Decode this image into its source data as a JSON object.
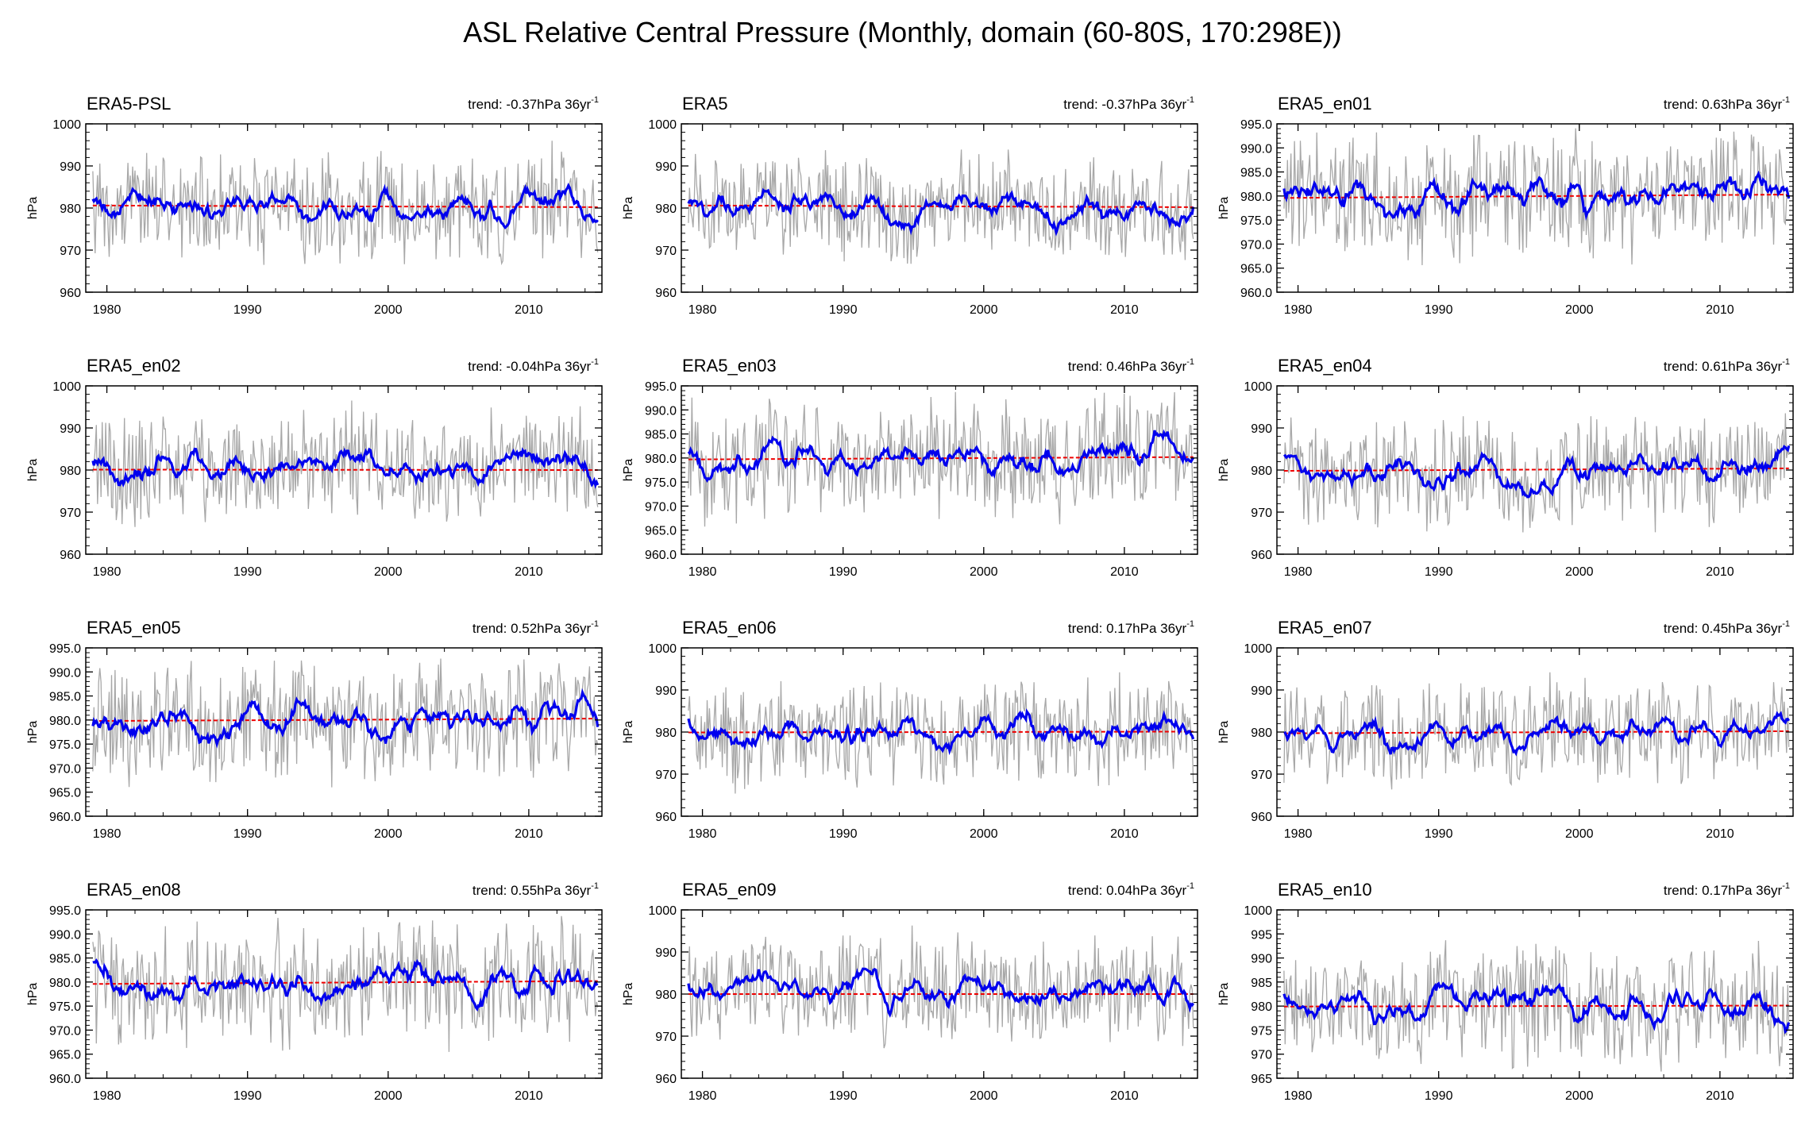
{
  "title": "ASL Relative Central Pressure (Monthly, domain (60-80S, 170:298E))",
  "colors": {
    "raw_series": "#a8a8a8",
    "smoothed_series": "#0000ee",
    "trend_line": "#ee0000"
  },
  "chart_data": [
    {
      "type": "line",
      "title": "ERA5-PSL",
      "trend_text": "trend: -0.37hPa 36yr",
      "trend_superscript": "-1",
      "ylabel": "hPa",
      "xlim": [
        1978.5,
        2015.2
      ],
      "ylim": [
        960,
        1000
      ],
      "yticks": [
        960,
        970,
        980,
        990,
        1000
      ],
      "ytick_labels": [
        "960",
        "970",
        "980",
        "990",
        "1000"
      ],
      "xticks": [
        1980,
        1990,
        2000,
        2010
      ],
      "xtick_labels": [
        "1980",
        "1990",
        "2000",
        "2010"
      ],
      "trend": {
        "start": 980.6,
        "end": 980.2
      },
      "series": [
        {
          "name": "",
          "style": "raw monthly, thin grey",
          "start": 1979.0,
          "step": 0.0833
        },
        {
          "name": "",
          "style": "smoothed, thick blue",
          "start": 1979.0,
          "step": 0.0833
        }
      ],
      "seed": 11
    },
    {
      "type": "line",
      "title": "ERA5",
      "trend_text": "trend: -0.37hPa 36yr",
      "trend_superscript": "-1",
      "ylabel": "hPa",
      "xlim": [
        1978.5,
        2015.2
      ],
      "ylim": [
        960,
        1000
      ],
      "yticks": [
        960,
        970,
        980,
        990,
        1000
      ],
      "ytick_labels": [
        "960",
        "970",
        "980",
        "990",
        "1000"
      ],
      "xticks": [
        1980,
        1990,
        2000,
        2010
      ],
      "xtick_labels": [
        "1980",
        "1990",
        "2000",
        "2010"
      ],
      "trend": {
        "start": 980.6,
        "end": 980.2
      },
      "series": [
        {
          "name": "",
          "style": "raw monthly, thin grey",
          "start": 1979.0,
          "step": 0.0833
        },
        {
          "name": "",
          "style": "smoothed, thick blue",
          "start": 1979.0,
          "step": 0.0833
        }
      ],
      "seed": 23
    },
    {
      "type": "line",
      "title": "ERA5_en01",
      "trend_text": "trend: 0.63hPa 36yr",
      "trend_superscript": "-1",
      "ylabel": "hPa",
      "xlim": [
        1978.5,
        2015.2
      ],
      "ylim": [
        960,
        995
      ],
      "yticks": [
        960,
        965,
        970,
        975,
        980,
        985,
        990,
        995
      ],
      "ytick_labels": [
        "960.0",
        "965.0",
        "970.0",
        "975.0",
        "980.0",
        "985.0",
        "990.0",
        "995.0"
      ],
      "xticks": [
        1980,
        1990,
        2000,
        2010
      ],
      "xtick_labels": [
        "1980",
        "1990",
        "2000",
        "2010"
      ],
      "trend": {
        "start": 979.6,
        "end": 980.3
      },
      "series": [
        {
          "name": "",
          "style": "raw monthly, thin grey",
          "start": 1979.0,
          "step": 0.0833
        },
        {
          "name": "",
          "style": "smoothed, thick blue",
          "start": 1979.0,
          "step": 0.0833
        }
      ],
      "seed": 37
    },
    {
      "type": "line",
      "title": "ERA5_en02",
      "trend_text": "trend: -0.04hPa 36yr",
      "trend_superscript": "-1",
      "ylabel": "hPa",
      "xlim": [
        1978.5,
        2015.2
      ],
      "ylim": [
        960,
        1000
      ],
      "yticks": [
        960,
        970,
        980,
        990,
        1000
      ],
      "ytick_labels": [
        "960",
        "970",
        "980",
        "990",
        "1000"
      ],
      "xticks": [
        1980,
        1990,
        2000,
        2010
      ],
      "xtick_labels": [
        "1980",
        "1990",
        "2000",
        "2010"
      ],
      "trend": {
        "start": 980.1,
        "end": 980.0
      },
      "series": [
        {
          "name": "",
          "style": "raw monthly, thin grey",
          "start": 1979.0,
          "step": 0.0833
        },
        {
          "name": "",
          "style": "smoothed, thick blue",
          "start": 1979.0,
          "step": 0.0833
        }
      ],
      "seed": 41
    },
    {
      "type": "line",
      "title": "ERA5_en03",
      "trend_text": "trend: 0.46hPa 36yr",
      "trend_superscript": "-1",
      "ylabel": "hPa",
      "xlim": [
        1978.5,
        2015.2
      ],
      "ylim": [
        960,
        995
      ],
      "yticks": [
        960,
        965,
        970,
        975,
        980,
        985,
        990,
        995
      ],
      "ytick_labels": [
        "960.0",
        "965.0",
        "970.0",
        "975.0",
        "980.0",
        "985.0",
        "990.0",
        "995.0"
      ],
      "xticks": [
        1980,
        1990,
        2000,
        2010
      ],
      "xtick_labels": [
        "1980",
        "1990",
        "2000",
        "2010"
      ],
      "trend": {
        "start": 979.7,
        "end": 980.2
      },
      "series": [
        {
          "name": "",
          "style": "raw monthly, thin grey",
          "start": 1979.0,
          "step": 0.0833
        },
        {
          "name": "",
          "style": "smoothed, thick blue",
          "start": 1979.0,
          "step": 0.0833
        }
      ],
      "seed": 53
    },
    {
      "type": "line",
      "title": "ERA5_en04",
      "trend_text": "trend: 0.61hPa 36yr",
      "trend_superscript": "-1",
      "ylabel": "hPa",
      "xlim": [
        1978.5,
        2015.2
      ],
      "ylim": [
        960,
        1000
      ],
      "yticks": [
        960,
        970,
        980,
        990,
        1000
      ],
      "ytick_labels": [
        "960",
        "970",
        "980",
        "990",
        "1000"
      ],
      "xticks": [
        1980,
        1990,
        2000,
        2010
      ],
      "xtick_labels": [
        "1980",
        "1990",
        "2000",
        "2010"
      ],
      "trend": {
        "start": 979.8,
        "end": 980.4
      },
      "series": [
        {
          "name": "",
          "style": "raw monthly, thin grey",
          "start": 1979.0,
          "step": 0.0833
        },
        {
          "name": "",
          "style": "smoothed, thick blue",
          "start": 1979.0,
          "step": 0.0833
        }
      ],
      "seed": 67
    },
    {
      "type": "line",
      "title": "ERA5_en05",
      "trend_text": "trend: 0.52hPa 36yr",
      "trend_superscript": "-1",
      "ylabel": "hPa",
      "xlim": [
        1978.5,
        2015.2
      ],
      "ylim": [
        960,
        995
      ],
      "yticks": [
        960,
        965,
        970,
        975,
        980,
        985,
        990,
        995
      ],
      "ytick_labels": [
        "960.0",
        "965.0",
        "970.0",
        "975.0",
        "980.0",
        "985.0",
        "990.0",
        "995.0"
      ],
      "xticks": [
        1980,
        1990,
        2000,
        2010
      ],
      "xtick_labels": [
        "1980",
        "1990",
        "2000",
        "2010"
      ],
      "trend": {
        "start": 979.8,
        "end": 980.3
      },
      "series": [
        {
          "name": "",
          "style": "raw monthly, thin grey",
          "start": 1979.0,
          "step": 0.0833
        },
        {
          "name": "",
          "style": "smoothed, thick blue",
          "start": 1979.0,
          "step": 0.0833
        }
      ],
      "seed": 71
    },
    {
      "type": "line",
      "title": "ERA5_en06",
      "trend_text": "trend: 0.17hPa 36yr",
      "trend_superscript": "-1",
      "ylabel": "hPa",
      "xlim": [
        1978.5,
        2015.2
      ],
      "ylim": [
        960,
        1000
      ],
      "yticks": [
        960,
        970,
        980,
        990,
        1000
      ],
      "ytick_labels": [
        "960",
        "970",
        "980",
        "990",
        "1000"
      ],
      "xticks": [
        1980,
        1990,
        2000,
        2010
      ],
      "xtick_labels": [
        "1980",
        "1990",
        "2000",
        "2010"
      ],
      "trend": {
        "start": 979.9,
        "end": 980.1
      },
      "series": [
        {
          "name": "",
          "style": "raw monthly, thin grey",
          "start": 1979.0,
          "step": 0.0833
        },
        {
          "name": "",
          "style": "smoothed, thick blue",
          "start": 1979.0,
          "step": 0.0833
        }
      ],
      "seed": 83
    },
    {
      "type": "line",
      "title": "ERA5_en07",
      "trend_text": "trend: 0.45hPa 36yr",
      "trend_superscript": "-1",
      "ylabel": "hPa",
      "xlim": [
        1978.5,
        2015.2
      ],
      "ylim": [
        960,
        1000
      ],
      "yticks": [
        960,
        970,
        980,
        990,
        1000
      ],
      "ytick_labels": [
        "960",
        "970",
        "980",
        "990",
        "1000"
      ],
      "xticks": [
        1980,
        1990,
        2000,
        2010
      ],
      "xtick_labels": [
        "1980",
        "1990",
        "2000",
        "2010"
      ],
      "trend": {
        "start": 979.7,
        "end": 980.2
      },
      "series": [
        {
          "name": "",
          "style": "raw monthly, thin grey",
          "start": 1979.0,
          "step": 0.0833
        },
        {
          "name": "",
          "style": "smoothed, thick blue",
          "start": 1979.0,
          "step": 0.0833
        }
      ],
      "seed": 97
    },
    {
      "type": "line",
      "title": "ERA5_en08",
      "trend_text": "trend: 0.55hPa 36yr",
      "trend_superscript": "-1",
      "ylabel": "hPa",
      "xlim": [
        1978.5,
        2015.2
      ],
      "ylim": [
        960,
        995
      ],
      "yticks": [
        960,
        965,
        970,
        975,
        980,
        985,
        990,
        995
      ],
      "ytick_labels": [
        "960.0",
        "965.0",
        "970.0",
        "975.0",
        "980.0",
        "985.0",
        "990.0",
        "995.0"
      ],
      "xticks": [
        1980,
        1990,
        2000,
        2010
      ],
      "xtick_labels": [
        "1980",
        "1990",
        "2000",
        "2010"
      ],
      "trend": {
        "start": 979.6,
        "end": 980.2
      },
      "series": [
        {
          "name": "",
          "style": "raw monthly, thin grey",
          "start": 1979.0,
          "step": 0.0833
        },
        {
          "name": "",
          "style": "smoothed, thick blue",
          "start": 1979.0,
          "step": 0.0833
        }
      ],
      "seed": 101
    },
    {
      "type": "line",
      "title": "ERA5_en09",
      "trend_text": "trend: 0.04hPa 36yr",
      "trend_superscript": "-1",
      "ylabel": "hPa",
      "xlim": [
        1978.5,
        2015.2
      ],
      "ylim": [
        960,
        1000
      ],
      "yticks": [
        960,
        970,
        980,
        990,
        1000
      ],
      "ytick_labels": [
        "960",
        "970",
        "980",
        "990",
        "1000"
      ],
      "xticks": [
        1980,
        1990,
        2000,
        2010
      ],
      "xtick_labels": [
        "1980",
        "1990",
        "2000",
        "2010"
      ],
      "trend": {
        "start": 980.0,
        "end": 980.0
      },
      "series": [
        {
          "name": "",
          "style": "raw monthly, thin grey",
          "start": 1979.0,
          "step": 0.0833
        },
        {
          "name": "",
          "style": "smoothed, thick blue",
          "start": 1979.0,
          "step": 0.0833
        }
      ],
      "seed": 113
    },
    {
      "type": "line",
      "title": "ERA5_en10",
      "trend_text": "trend: 0.17hPa 36yr",
      "trend_superscript": "-1",
      "ylabel": "hPa",
      "xlim": [
        1978.5,
        2015.2
      ],
      "ylim": [
        965,
        1000
      ],
      "yticks": [
        965,
        970,
        975,
        980,
        985,
        990,
        995,
        1000
      ],
      "ytick_labels": [
        "965",
        "970",
        "975",
        "980",
        "985",
        "990",
        "995",
        "1000"
      ],
      "xticks": [
        1980,
        1990,
        2000,
        2010
      ],
      "xtick_labels": [
        "1980",
        "1990",
        "2000",
        "2010"
      ],
      "trend": {
        "start": 979.9,
        "end": 980.1
      },
      "series": [
        {
          "name": "",
          "style": "raw monthly, thin grey",
          "start": 1979.0,
          "step": 0.0833
        },
        {
          "name": "",
          "style": "smoothed, thick blue",
          "start": 1979.0,
          "step": 0.0833
        }
      ],
      "seed": 127
    }
  ]
}
